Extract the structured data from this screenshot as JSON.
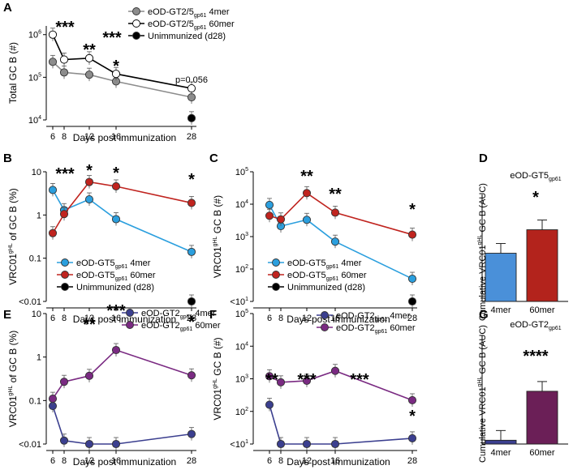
{
  "chart_data": [
    {
      "id": "A",
      "panel_label": "A",
      "type": "line",
      "yscale": "log",
      "ylabel": "Total GC B (#)",
      "xlabel": "Days post immunization",
      "x": [
        6,
        8,
        12,
        16,
        28
      ],
      "xticks": [
        "6",
        "8",
        "12",
        "16",
        "28"
      ],
      "yticks": [
        {
          "v": 10000,
          "b": "10",
          "e": "4"
        },
        {
          "v": 100000,
          "b": "10",
          "e": "5"
        },
        {
          "v": 1000000,
          "b": "10",
          "e": "6"
        }
      ],
      "ylim": [
        10000,
        1600000
      ],
      "series": [
        {
          "name": "eOD-GT2/5",
          "sub": "gp61",
          "suffix": " 4mer",
          "color": "#8c8c8c",
          "marker": "hexagon",
          "values": [
            230000,
            130000,
            115000,
            80000,
            34000
          ]
        },
        {
          "name": "eOD-GT2/5",
          "sub": "gp61",
          "suffix": " 60mer",
          "color": "#ffffff",
          "line": "#000000",
          "marker": "circle",
          "values": [
            1000000,
            260000,
            280000,
            120000,
            55000
          ]
        },
        {
          "name": "Unimmunized (d28)",
          "color": "#000000",
          "marker": "circle",
          "values": [
            null,
            null,
            null,
            null,
            11000
          ]
        }
      ],
      "annotations": [
        "***",
        "**",
        "***",
        "*"
      ],
      "pvalue_label": "p=0.056"
    },
    {
      "id": "B",
      "panel_label": "B",
      "type": "line",
      "yscale": "log",
      "ylabel": "VRC01gHL of GC B (%)",
      "xlabel": "Days post immunization",
      "x": [
        6,
        8,
        12,
        16,
        28
      ],
      "xticks": [
        "6",
        "8",
        "12",
        "16",
        "28"
      ],
      "yticks": [
        "<0.01",
        "0.1",
        "1",
        "10"
      ],
      "ylim": [
        0.01,
        10
      ],
      "series": [
        {
          "name": "eOD-GT5",
          "sub": "gp61",
          "suffix": " 4mer",
          "color": "#2b9fde",
          "values": [
            3.8,
            1.3,
            2.3,
            0.8,
            0.14
          ]
        },
        {
          "name": "eOD-GT5",
          "sub": "gp61",
          "suffix": " 60mer",
          "color": "#c0241f",
          "values": [
            0.38,
            1.05,
            5.8,
            4.6,
            1.9
          ]
        },
        {
          "name": "Unimmunized (d28)",
          "color": "#000000",
          "values": [
            null,
            null,
            null,
            null,
            0.01
          ]
        }
      ],
      "annotations": [
        "***",
        "*",
        "*",
        "*"
      ]
    },
    {
      "id": "C",
      "panel_label": "C",
      "type": "line",
      "yscale": "log",
      "ylabel": "VRC01gHL GC B (#)",
      "xlabel": "Days post immunization",
      "x": [
        6,
        8,
        12,
        16,
        28
      ],
      "xticks": [
        "6",
        "8",
        "12",
        "16",
        "28"
      ],
      "yticks": [
        {
          "v": 10,
          "b": "<10",
          "e": "1"
        },
        {
          "v": 100,
          "b": "10",
          "e": "2"
        },
        {
          "v": 1000,
          "b": "10",
          "e": "3"
        },
        {
          "v": 10000,
          "b": "10",
          "e": "4"
        },
        {
          "v": 100000,
          "b": "10",
          "e": "5"
        }
      ],
      "ylim": [
        10,
        100000
      ],
      "series": [
        {
          "name": "eOD-GT5",
          "sub": "gp61",
          "suffix": " 4mer",
          "color": "#2b9fde",
          "values": [
            9500,
            2100,
            3300,
            700,
            50
          ]
        },
        {
          "name": "eOD-GT5",
          "sub": "gp61",
          "suffix": " 60mer",
          "color": "#c0241f",
          "values": [
            4400,
            3400,
            22000,
            5500,
            1150
          ]
        },
        {
          "name": "Unimmunized (d28)",
          "color": "#000000",
          "values": [
            null,
            null,
            null,
            null,
            10
          ]
        }
      ],
      "annotations": [
        "**",
        "**",
        "*"
      ]
    },
    {
      "id": "D",
      "panel_label": "D",
      "type": "bar",
      "title": "eOD-GT5",
      "title_sub": "gp61",
      "ylabel": "Cumulative VRC01gHL GC B (AUC)",
      "categories": [
        "4mer",
        "60mer"
      ],
      "values": [
        39,
        58
      ],
      "colors": [
        "#4a90d9",
        "#b3231c"
      ],
      "ylim": [
        0,
        80
      ],
      "annotation": "*"
    },
    {
      "id": "E",
      "panel_label": "E",
      "type": "line",
      "yscale": "log",
      "ylabel": "VRC01gHL of GC B (%)",
      "xlabel": "Days post immunization",
      "x": [
        6,
        8,
        12,
        16,
        28
      ],
      "xticks": [
        "6",
        "8",
        "12",
        "16",
        "28"
      ],
      "yticks": [
        "<0.01",
        "0.1",
        "1",
        "10"
      ],
      "ylim": [
        0.01,
        10
      ],
      "series": [
        {
          "name": "eOD-GT2",
          "sub": "gp61",
          "suffix": " 4mer",
          "color": "#3b3f8f",
          "values": [
            0.075,
            0.012,
            0.01,
            0.01,
            0.017
          ]
        },
        {
          "name": "eOD-GT2",
          "sub": "gp61",
          "suffix": " 60mer",
          "color": "#7a2a82",
          "values": [
            0.11,
            0.27,
            0.37,
            1.45,
            0.38
          ]
        }
      ],
      "annotations": [
        "**",
        "***",
        "*"
      ]
    },
    {
      "id": "F",
      "panel_label": "F",
      "type": "line",
      "yscale": "log",
      "ylabel": "VRC01gHL GC B (#)",
      "xlabel": "Days post immunization",
      "x": [
        6,
        8,
        12,
        16,
        28
      ],
      "xticks": [
        "6",
        "8",
        "12",
        "16",
        "28"
      ],
      "yticks": [
        {
          "v": 10,
          "b": "<10",
          "e": "1"
        },
        {
          "v": 100,
          "b": "10",
          "e": "2"
        },
        {
          "v": 1000,
          "b": "10",
          "e": "3"
        },
        {
          "v": 10000,
          "b": "10",
          "e": "4"
        },
        {
          "v": 100000,
          "b": "10",
          "e": "5"
        }
      ],
      "ylim": [
        10,
        100000
      ],
      "series": [
        {
          "name": "eOD-GT2",
          "sub": "gp61",
          "suffix": " 4mer",
          "color": "#3b3f8f",
          "values": [
            160,
            10,
            10,
            10,
            15
          ]
        },
        {
          "name": "eOD-GT2",
          "sub": "gp61",
          "suffix": " 60mer",
          "color": "#7a2a82",
          "values": [
            1200,
            780,
            870,
            1750,
            220
          ]
        }
      ],
      "annotations": [
        "**",
        "***",
        "***",
        "*"
      ]
    },
    {
      "id": "G",
      "panel_label": "G",
      "type": "bar",
      "title": "eOD-GT2",
      "title_sub": "gp61",
      "ylabel": "Cumulative VRC01gHL GC B (AUC)",
      "categories": [
        "4mer",
        "60mer"
      ],
      "values": [
        3,
        42
      ],
      "colors": [
        "#3b3f8f",
        "#6b1f57"
      ],
      "ylim": [
        0,
        80
      ],
      "annotation": "****"
    }
  ]
}
